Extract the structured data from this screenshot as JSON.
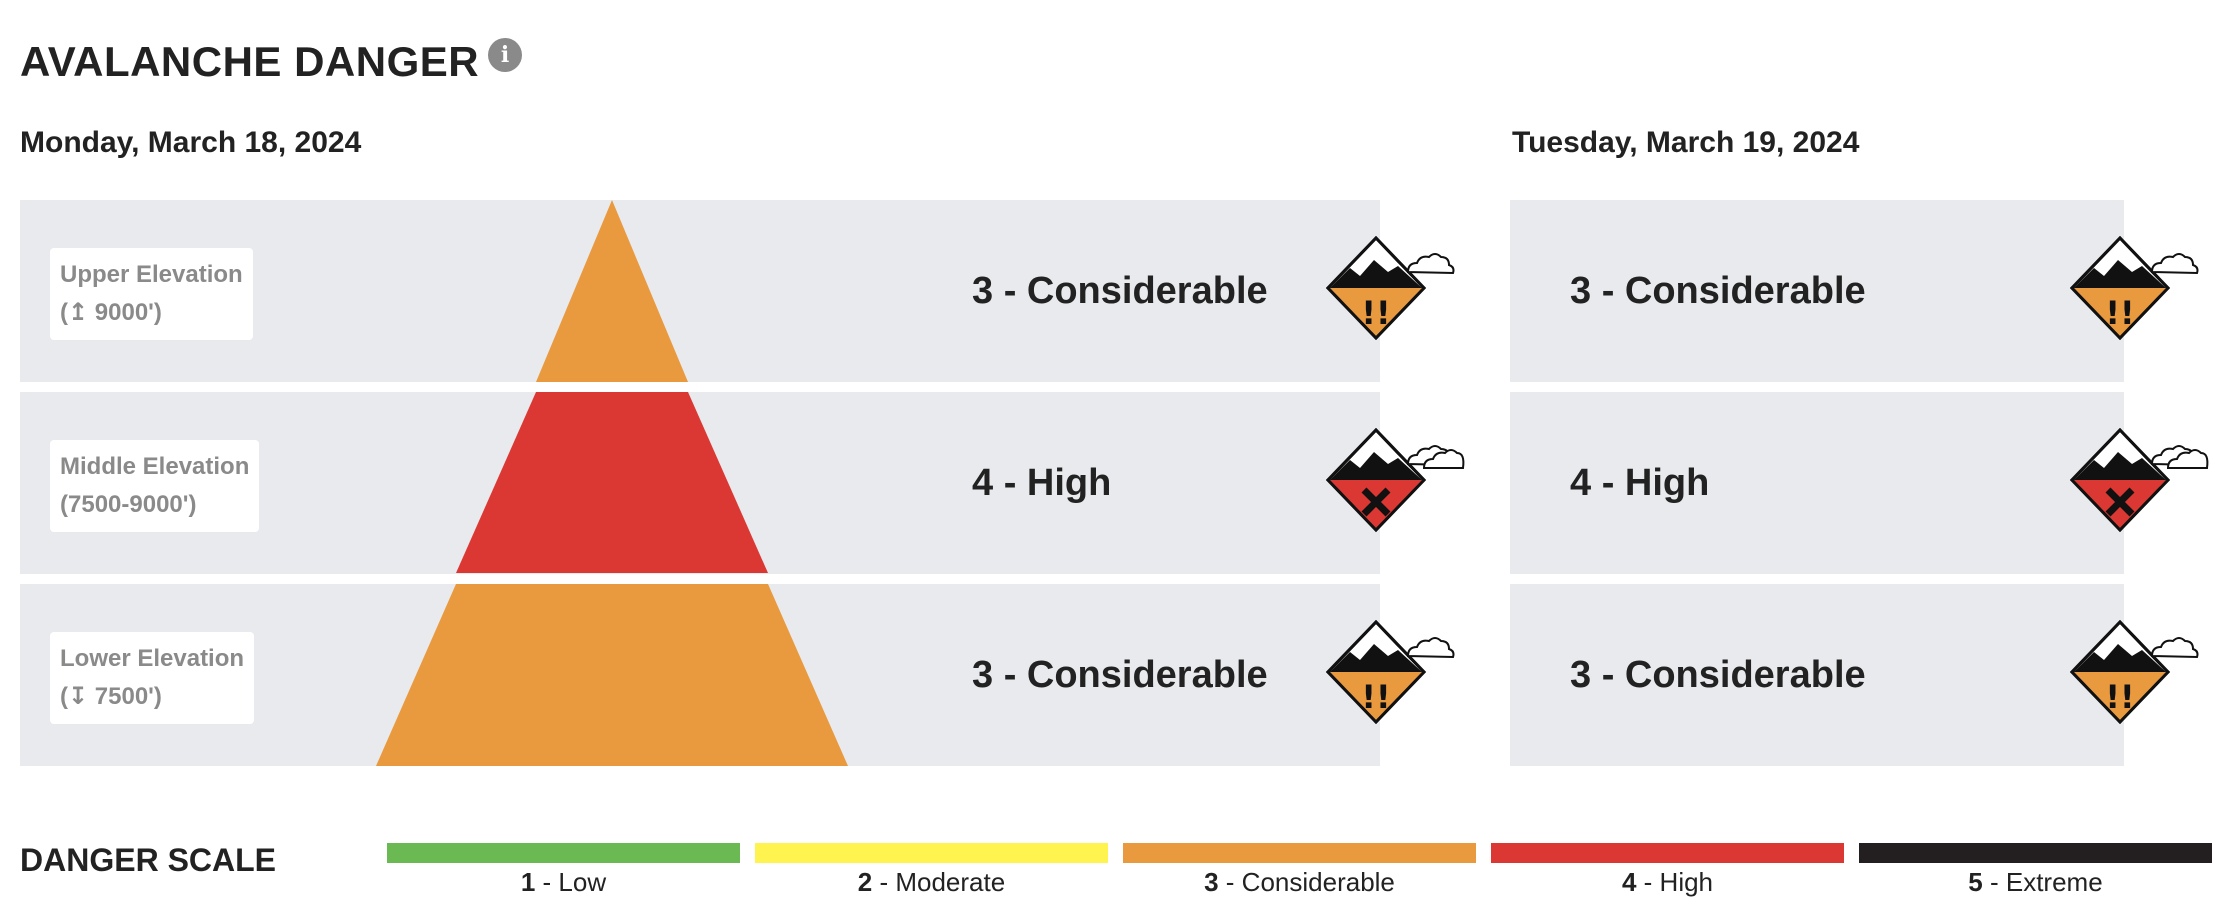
{
  "header": {
    "title": "AVALANCHE DANGER",
    "info_icon": "info-icon"
  },
  "days": [
    {
      "date": "Monday, March 18, 2024",
      "rows": [
        {
          "label_line1": "Upper Elevation",
          "label_line2": "(↥ 9000')",
          "rating": "3 - Considerable",
          "level": 3
        },
        {
          "label_line1": "Middle Elevation",
          "label_line2": "(7500-9000')",
          "rating": "4 - High",
          "level": 4
        },
        {
          "label_line1": "Lower Elevation",
          "label_line2": "(↧ 7500')",
          "rating": "3 - Considerable",
          "level": 3
        }
      ]
    },
    {
      "date": "Tuesday, March 19, 2024",
      "rows": [
        {
          "rating": "3 - Considerable",
          "level": 3
        },
        {
          "rating": "4 - High",
          "level": 4
        },
        {
          "rating": "3 - Considerable",
          "level": 3
        }
      ]
    }
  ],
  "colors": {
    "low": "#6bb953",
    "moderate": "#fff34f",
    "considerable": "#e9993e",
    "high": "#dc3833",
    "extreme": "#231f20",
    "row_bg": "#e8eaed"
  },
  "scale": {
    "title": "DANGER SCALE",
    "items": [
      {
        "num": "1",
        "name": " - Low",
        "color": "#6bb953"
      },
      {
        "num": "2",
        "name": " - Moderate",
        "color": "#fff34f"
      },
      {
        "num": "3",
        "name": " - Considerable",
        "color": "#e9993e"
      },
      {
        "num": "4",
        "name": " - High",
        "color": "#dc3833"
      },
      {
        "num": "5",
        "name": " - Extreme",
        "color": "#231f20"
      }
    ]
  }
}
